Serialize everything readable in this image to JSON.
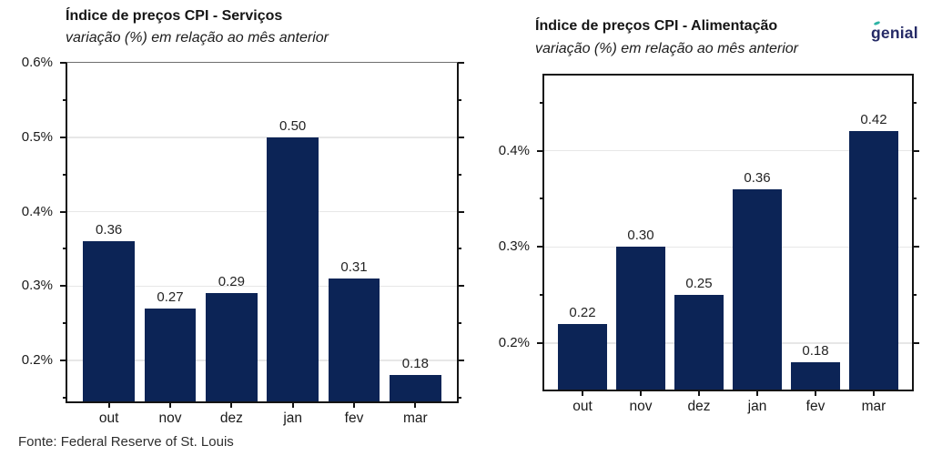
{
  "page": {
    "source": "Fonte: Federal Reserve of St. Louis",
    "brand": {
      "logo_text": "genial",
      "logo_color": "#252a66",
      "accent_color": "#2db3a4"
    }
  },
  "chart_data": [
    {
      "type": "bar",
      "title": "Índice de preços CPI - Serviços",
      "subtitle": "variação (%) em relação ao mês anterior",
      "categories": [
        "out",
        "nov",
        "dez",
        "jan",
        "fev",
        "mar"
      ],
      "values": [
        0.36,
        0.27,
        0.29,
        0.5,
        0.31,
        0.18
      ],
      "bar_color": "#0c2456",
      "ylim": [
        0.145,
        0.6
      ],
      "yticks": [
        0.2,
        0.3,
        0.4,
        0.5,
        0.6
      ],
      "ytick_labels": [
        "0.2%",
        "0.3%",
        "0.4%",
        "0.5%",
        "0.6%"
      ],
      "yticks_minor": [
        0.15,
        0.25,
        0.35,
        0.45,
        0.55
      ],
      "grid": true,
      "value_label_decimals": 2,
      "legend": "none"
    },
    {
      "type": "bar",
      "title": "Índice de preços CPI - Alimentação",
      "subtitle": "variação (%) em relação ao mês anterior",
      "categories": [
        "out",
        "nov",
        "dez",
        "jan",
        "fev",
        "mar"
      ],
      "values": [
        0.22,
        0.3,
        0.25,
        0.36,
        0.18,
        0.42
      ],
      "bar_color": "#0c2456",
      "ylim": [
        0.152,
        0.478
      ],
      "yticks": [
        0.2,
        0.3,
        0.4
      ],
      "ytick_labels": [
        "0.2%",
        "0.3%",
        "0.4%"
      ],
      "yticks_minor": [
        0.25,
        0.35,
        0.45
      ],
      "grid": true,
      "value_label_decimals": 2,
      "legend": "none"
    }
  ]
}
